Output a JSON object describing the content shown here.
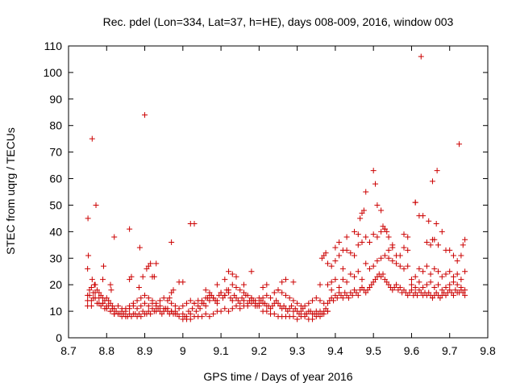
{
  "chart_data": {
    "type": "scatter",
    "title": "Rec. pdel (Lon=334, Lat=37, h=HE), days 008-009, 2016, window 003",
    "xlabel": "GPS time / Days of year 2016",
    "ylabel": "STEC from uqrg / TECUs",
    "xlim": [
      8.7,
      9.8
    ],
    "ylim": [
      0,
      110
    ],
    "x_ticks": [
      8.7,
      8.8,
      8.9,
      9.0,
      9.1,
      9.2,
      9.3,
      9.4,
      9.5,
      9.6,
      9.7,
      9.8
    ],
    "x_tick_labels": [
      "8.7",
      "8.8",
      "8.9",
      "9",
      "9.1",
      "9.2",
      "9.3",
      "9.4",
      "9.5",
      "9.6",
      "9.7",
      "9.8"
    ],
    "y_ticks": [
      0,
      10,
      20,
      30,
      40,
      50,
      60,
      70,
      80,
      90,
      100,
      110
    ],
    "y_tick_labels": [
      "0",
      "10",
      "20",
      "30",
      "40",
      "50",
      "60",
      "70",
      "80",
      "90",
      "100",
      "110"
    ],
    "marker": "+",
    "color": "#cc0000",
    "grid": false,
    "series": [
      {
        "name": "STEC",
        "x": [
          8.75,
          8.755,
          8.76,
          8.765,
          8.77,
          8.775,
          8.78,
          8.785,
          8.79,
          8.795,
          8.8,
          8.805,
          8.81,
          8.815,
          8.82,
          8.825,
          8.83,
          8.835,
          8.84,
          8.845,
          8.85,
          8.855,
          8.86,
          8.865,
          8.87,
          8.875,
          8.88,
          8.885,
          8.89,
          8.895,
          8.9,
          8.905,
          8.91,
          8.915,
          8.92,
          8.925,
          8.93,
          8.935,
          8.94,
          8.945,
          8.95,
          8.955,
          8.96,
          8.965,
          8.97,
          8.975,
          8.98,
          8.985,
          8.99,
          8.75,
          8.755,
          8.76,
          8.765,
          8.77,
          8.775,
          8.78,
          8.785,
          8.79,
          8.795,
          8.8,
          8.805,
          8.81,
          8.815,
          8.82,
          8.83,
          8.84,
          8.85,
          8.86,
          8.87,
          8.88,
          8.89,
          8.9,
          8.91,
          8.92,
          8.93,
          8.94,
          8.95,
          8.96,
          8.97,
          8.98,
          8.99,
          8.75,
          8.76,
          8.77,
          8.78,
          8.79,
          8.8,
          8.81,
          8.82,
          8.83,
          8.84,
          8.85,
          8.86,
          8.87,
          8.88,
          8.89,
          8.9,
          8.91,
          8.92,
          8.93,
          8.94,
          8.95,
          8.96,
          8.97,
          8.98,
          8.75,
          8.752,
          8.762,
          8.768,
          8.79,
          8.792,
          8.81,
          8.812,
          8.86,
          8.865,
          8.885,
          8.895,
          8.905,
          8.91,
          8.915,
          8.92,
          8.925,
          8.93,
          8.965,
          8.97,
          8.975,
          8.99,
          8.751,
          8.762,
          8.772,
          8.82,
          8.86,
          8.887,
          8.9,
          8.97,
          9.03,
          9.0,
          9.005,
          9.01,
          9.015,
          9.02,
          9.025,
          9.03,
          9.035,
          9.04,
          9.045,
          9.05,
          9.055,
          9.06,
          9.065,
          9.07,
          9.075,
          9.08,
          9.085,
          9.09,
          9.095,
          9.1,
          9.105,
          9.11,
          9.115,
          9.12,
          9.125,
          9.13,
          9.135,
          9.14,
          9.145,
          9.15,
          9.155,
          9.16,
          9.165,
          9.17,
          9.175,
          9.18,
          9.185,
          9.19,
          9.195,
          9.2,
          9.0,
          9.01,
          9.02,
          9.03,
          9.04,
          9.05,
          9.06,
          9.07,
          9.08,
          9.09,
          9.1,
          9.11,
          9.12,
          9.13,
          9.14,
          9.15,
          9.16,
          9.17,
          9.18,
          9.19,
          9.2,
          9.0,
          9.01,
          9.02,
          9.03,
          9.04,
          9.05,
          9.06,
          9.07,
          9.08,
          9.09,
          9.1,
          9.11,
          9.12,
          9.13,
          9.14,
          9.15,
          9.16,
          9.17,
          9.18,
          9.19,
          9.2,
          9.0,
          9.02,
          9.06,
          9.07,
          9.09,
          9.11,
          9.12,
          9.13,
          9.14,
          9.16,
          9.18,
          9.205,
          9.21,
          9.215,
          9.22,
          9.225,
          9.23,
          9.235,
          9.24,
          9.245,
          9.25,
          9.255,
          9.26,
          9.265,
          9.27,
          9.275,
          9.28,
          9.285,
          9.29,
          9.295,
          9.3,
          9.305,
          9.31,
          9.315,
          9.32,
          9.325,
          9.33,
          9.335,
          9.34,
          9.345,
          9.35,
          9.355,
          9.36,
          9.365,
          9.37,
          9.375,
          9.38,
          9.21,
          9.22,
          9.23,
          9.24,
          9.25,
          9.26,
          9.27,
          9.28,
          9.29,
          9.3,
          9.31,
          9.32,
          9.33,
          9.34,
          9.35,
          9.36,
          9.37,
          9.38,
          9.21,
          9.22,
          9.23,
          9.24,
          9.25,
          9.26,
          9.27,
          9.28,
          9.29,
          9.3,
          9.31,
          9.32,
          9.33,
          9.34,
          9.35,
          9.36,
          9.37,
          9.21,
          9.22,
          9.25,
          9.26,
          9.27,
          9.29,
          9.36,
          9.365,
          9.37,
          9.375,
          9.38,
          9.385,
          9.39,
          9.395,
          9.4,
          9.405,
          9.41,
          9.415,
          9.42,
          9.425,
          9.43,
          9.435,
          9.44,
          9.445,
          9.45,
          9.455,
          9.46,
          9.465,
          9.47,
          9.475,
          9.48,
          9.485,
          9.49,
          9.495,
          9.5,
          9.505,
          9.51,
          9.515,
          9.52,
          9.525,
          9.53,
          9.535,
          9.54,
          9.545,
          9.55,
          9.555,
          9.56,
          9.565,
          9.57,
          9.575,
          9.58,
          9.585,
          9.59,
          9.38,
          9.39,
          9.4,
          9.41,
          9.42,
          9.43,
          9.44,
          9.45,
          9.46,
          9.47,
          9.48,
          9.49,
          9.5,
          9.51,
          9.52,
          9.53,
          9.54,
          9.55,
          9.56,
          9.57,
          9.58,
          9.59,
          9.38,
          9.39,
          9.4,
          9.41,
          9.42,
          9.43,
          9.44,
          9.45,
          9.46,
          9.47,
          9.48,
          9.49,
          9.5,
          9.51,
          9.52,
          9.53,
          9.54,
          9.55,
          9.56,
          9.57,
          9.58,
          9.59,
          9.39,
          9.4,
          9.41,
          9.42,
          9.43,
          9.45,
          9.46,
          9.465,
          9.47,
          9.475,
          9.48,
          9.5,
          9.505,
          9.51,
          9.52,
          9.525,
          9.53,
          9.535,
          9.54,
          9.55,
          9.58,
          9.59,
          9.595,
          9.6,
          9.605,
          9.61,
          9.615,
          9.62,
          9.625,
          9.63,
          9.635,
          9.64,
          9.645,
          9.65,
          9.655,
          9.66,
          9.665,
          9.67,
          9.675,
          9.68,
          9.685,
          9.69,
          9.695,
          9.7,
          9.705,
          9.71,
          9.715,
          9.72,
          9.725,
          9.73,
          9.735,
          9.74,
          9.6,
          9.61,
          9.62,
          9.63,
          9.64,
          9.65,
          9.66,
          9.67,
          9.68,
          9.69,
          9.7,
          9.71,
          9.72,
          9.73,
          9.74,
          9.6,
          9.61,
          9.62,
          9.63,
          9.64,
          9.65,
          9.66,
          9.67,
          9.68,
          9.69,
          9.7,
          9.71,
          9.72,
          9.73,
          9.74,
          9.61,
          9.62,
          9.63,
          9.64,
          9.645,
          9.65,
          9.655,
          9.66,
          9.665,
          9.67,
          9.68,
          9.69,
          9.7,
          9.71,
          9.72,
          9.73,
          9.735,
          9.74,
          9.61,
          9.625,
          9.655,
          9.667,
          9.725
        ],
        "y": [
          14,
          16,
          12,
          15,
          17,
          13,
          15,
          12,
          13,
          11,
          11,
          12,
          10,
          11,
          9,
          10,
          9,
          9,
          8,
          9,
          8,
          8,
          9,
          8,
          9,
          9,
          8,
          9,
          8,
          10,
          9,
          9,
          10,
          9,
          11,
          10,
          10,
          11,
          10,
          9,
          10,
          11,
          10,
          9,
          10,
          9,
          10,
          9,
          8,
          16,
          18,
          19,
          17,
          20,
          18,
          17,
          16,
          15,
          14,
          15,
          14,
          13,
          12,
          11,
          12,
          11,
          11,
          12,
          13,
          14,
          15,
          16,
          15,
          14,
          13,
          14,
          15,
          14,
          13,
          12,
          11,
          12,
          14,
          15,
          13,
          13,
          12,
          10,
          9,
          9,
          10,
          10,
          11,
          12,
          11,
          12,
          13,
          12,
          13,
          12,
          12,
          11,
          11,
          10,
          9,
          26,
          31,
          22,
          20,
          22,
          27,
          20,
          18,
          22,
          23,
          19,
          23,
          26,
          27,
          28,
          23,
          23,
          28,
          15,
          17,
          18,
          21,
          45,
          75,
          50,
          38,
          41,
          34,
          84,
          36,
          43,
          9,
          8,
          8,
          10,
          9,
          11,
          13,
          10,
          12,
          11,
          14,
          13,
          12,
          15,
          14,
          16,
          15,
          14,
          13,
          16,
          17,
          15,
          16,
          18,
          17,
          15,
          14,
          16,
          15,
          14,
          13,
          15,
          14,
          16,
          13,
          14,
          15,
          14,
          13,
          12,
          13,
          7,
          7,
          7,
          8,
          8,
          8,
          9,
          8,
          9,
          10,
          10,
          11,
          10,
          11,
          12,
          11,
          12,
          12,
          13,
          12,
          12,
          12,
          13,
          14,
          13,
          14,
          13,
          15,
          16,
          15,
          14,
          17,
          16,
          18,
          20,
          19,
          18,
          17,
          16,
          15,
          14,
          15,
          21,
          43,
          18,
          17,
          20,
          22,
          25,
          24,
          23,
          20,
          25,
          14,
          13,
          13,
          12,
          12,
          11,
          12,
          13,
          14,
          13,
          12,
          11,
          12,
          11,
          10,
          11,
          12,
          10,
          11,
          10,
          9,
          10,
          11,
          9,
          9,
          10,
          10,
          9,
          9,
          10,
          9,
          10,
          9,
          10,
          11,
          10,
          10,
          10,
          9,
          9,
          8,
          8,
          8,
          8,
          8,
          7,
          8,
          8,
          7,
          7,
          8,
          8,
          9,
          10,
          15,
          16,
          15,
          17,
          18,
          17,
          16,
          15,
          14,
          13,
          12,
          12,
          13,
          14,
          15,
          14,
          13,
          19,
          20,
          18,
          21,
          22,
          21,
          20,
          30,
          31,
          32,
          13,
          14,
          15,
          14,
          16,
          15,
          17,
          16,
          15,
          17,
          16,
          15,
          17,
          16,
          18,
          17,
          16,
          18,
          19,
          18,
          17,
          18,
          19,
          20,
          21,
          22,
          23,
          24,
          23,
          24,
          22,
          21,
          20,
          19,
          18,
          19,
          20,
          18,
          19,
          17,
          18,
          17,
          16,
          20,
          21,
          22,
          19,
          22,
          21,
          24,
          23,
          25,
          22,
          28,
          26,
          27,
          29,
          30,
          31,
          30,
          29,
          28,
          27,
          26,
          27,
          28,
          27,
          29,
          31,
          26,
          33,
          32,
          31,
          35,
          36,
          38,
          36,
          39,
          38,
          40,
          41,
          33,
          34,
          31,
          31,
          34,
          33,
          18,
          34,
          36,
          33,
          38,
          40,
          39,
          45,
          47,
          48,
          55,
          63,
          58,
          50,
          48,
          42,
          41,
          40,
          38,
          35,
          39,
          38,
          17,
          18,
          16,
          17,
          16,
          18,
          17,
          16,
          17,
          16,
          17,
          16,
          15,
          16,
          17,
          16,
          15,
          16,
          17,
          16,
          17,
          18,
          17,
          16,
          18,
          17,
          17,
          18,
          17,
          16,
          20,
          19,
          21,
          19,
          20,
          21,
          19,
          20,
          18,
          19,
          20,
          21,
          20,
          19,
          18,
          22,
          23,
          26,
          25,
          27,
          24,
          26,
          25,
          23,
          24,
          25,
          23,
          24,
          22,
          25,
          51,
          46,
          46,
          36,
          44,
          35,
          37,
          37,
          43,
          35,
          40,
          33,
          33,
          31,
          29,
          31,
          35,
          37,
          51,
          106,
          59,
          63,
          73
        ]
      }
    ]
  }
}
